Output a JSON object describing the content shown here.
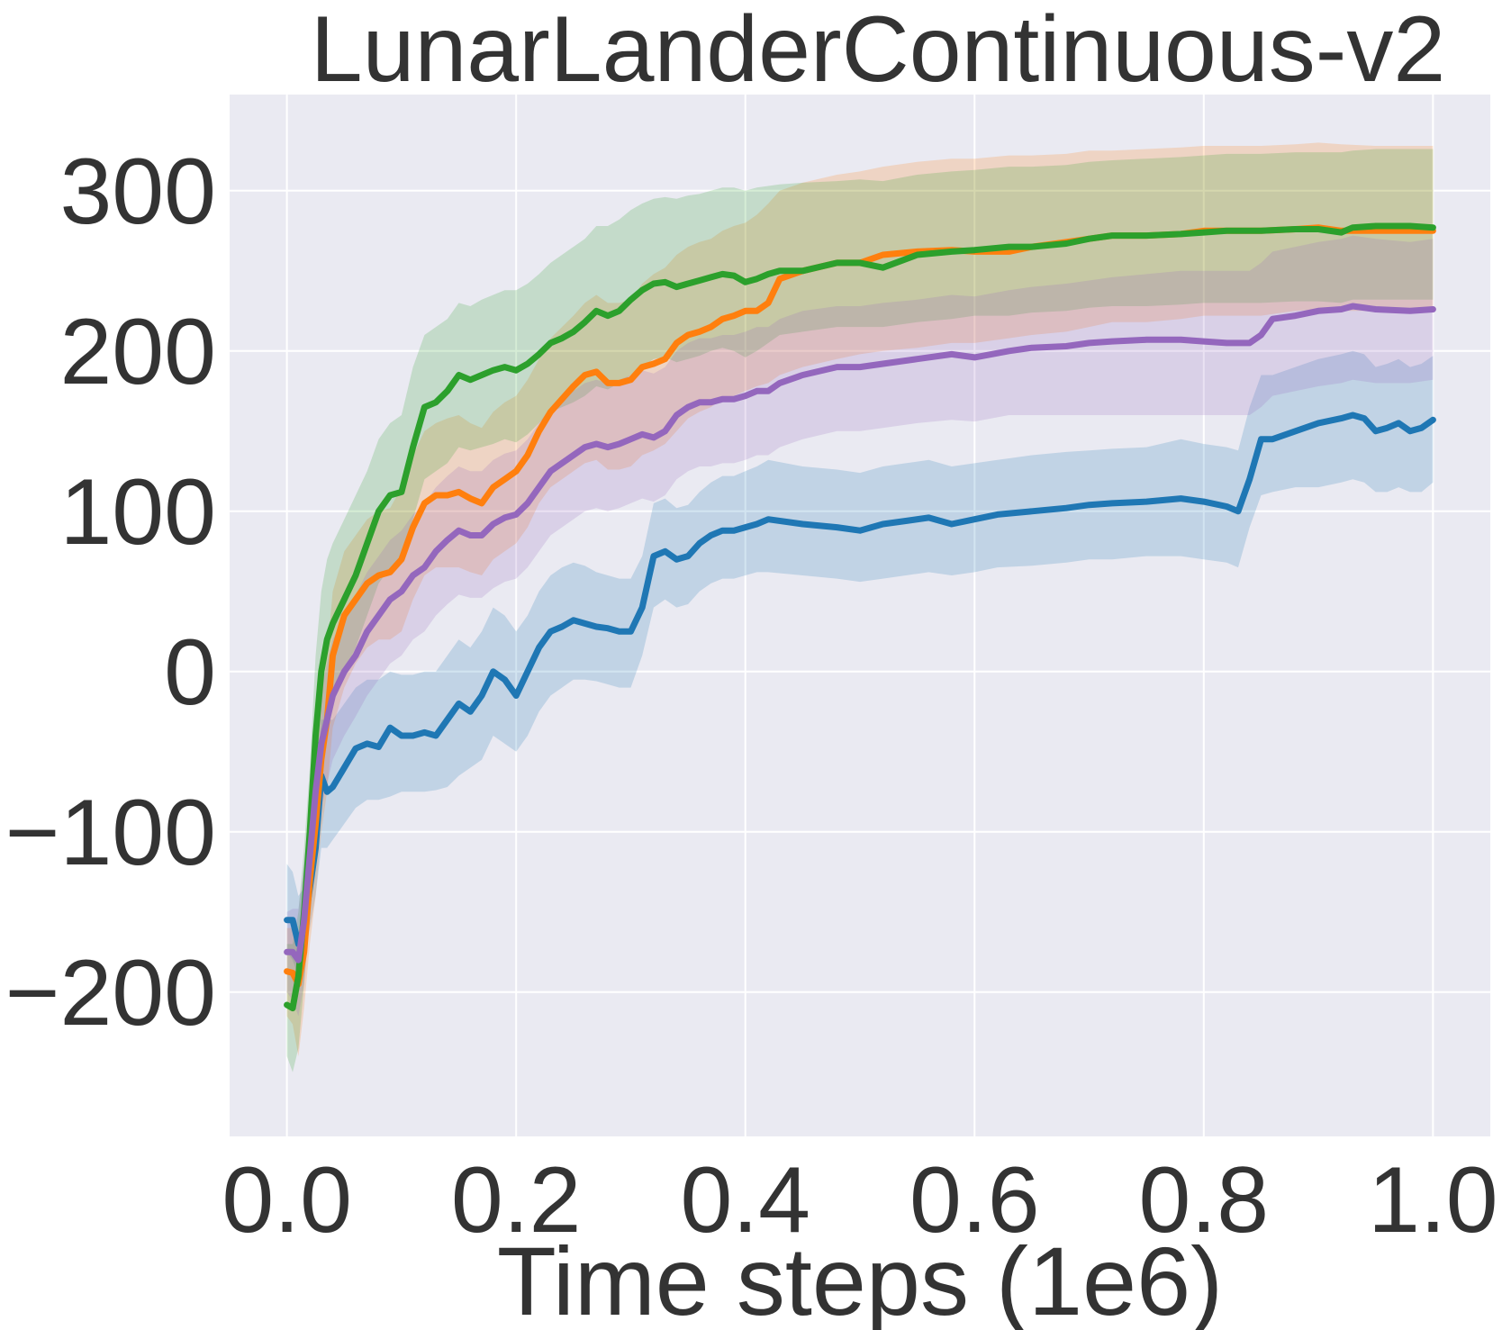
{
  "chart_data": {
    "type": "line",
    "title": "LunarLanderContinuous-v2",
    "xlabel": "Time steps (1e6)",
    "ylabel": "",
    "xlim": [
      -0.05,
      1.05
    ],
    "ylim": [
      -290,
      360
    ],
    "x_ticks": [
      0.0,
      0.2,
      0.4,
      0.6,
      0.8,
      1.0
    ],
    "x_tick_labels": [
      "0.0",
      "0.2",
      "0.4",
      "0.6",
      "0.8",
      "1.0"
    ],
    "y_ticks": [
      -200,
      -100,
      0,
      100,
      200,
      300
    ],
    "y_tick_labels": [
      "−200",
      "−100",
      "0",
      "100",
      "200",
      "300"
    ],
    "grid": true,
    "background": "#eaeaf2",
    "series": [
      {
        "color": "#1f77b4",
        "x": [
          0.0,
          0.005,
          0.01,
          0.015,
          0.02,
          0.025,
          0.03,
          0.035,
          0.04,
          0.05,
          0.06,
          0.07,
          0.08,
          0.09,
          0.1,
          0.11,
          0.12,
          0.13,
          0.14,
          0.15,
          0.16,
          0.17,
          0.18,
          0.19,
          0.2,
          0.21,
          0.22,
          0.23,
          0.24,
          0.25,
          0.26,
          0.27,
          0.28,
          0.29,
          0.3,
          0.31,
          0.32,
          0.33,
          0.34,
          0.35,
          0.36,
          0.37,
          0.38,
          0.39,
          0.4,
          0.41,
          0.42,
          0.45,
          0.48,
          0.5,
          0.52,
          0.54,
          0.56,
          0.58,
          0.6,
          0.62,
          0.65,
          0.68,
          0.7,
          0.72,
          0.75,
          0.78,
          0.8,
          0.82,
          0.83,
          0.84,
          0.85,
          0.86,
          0.88,
          0.9,
          0.92,
          0.93,
          0.94,
          0.95,
          0.96,
          0.97,
          0.98,
          0.99,
          1.0
        ],
        "y": [
          -155,
          -155,
          -170,
          -160,
          -135,
          -110,
          -65,
          -75,
          -72,
          -60,
          -48,
          -45,
          -47,
          -35,
          -40,
          -40,
          -38,
          -40,
          -30,
          -20,
          -25,
          -15,
          0,
          -5,
          -15,
          0,
          15,
          25,
          28,
          32,
          30,
          28,
          27,
          25,
          25,
          40,
          72,
          75,
          70,
          72,
          80,
          85,
          88,
          88,
          90,
          92,
          95,
          92,
          90,
          88,
          92,
          94,
          96,
          92,
          95,
          98,
          100,
          102,
          104,
          105,
          106,
          108,
          106,
          103,
          100,
          120,
          145,
          145,
          150,
          155,
          158,
          160,
          158,
          150,
          152,
          155,
          150,
          152,
          157
        ],
        "lower": [
          -175,
          -180,
          -190,
          -180,
          -160,
          -140,
          -110,
          -110,
          -105,
          -95,
          -85,
          -80,
          -80,
          -78,
          -75,
          -75,
          -75,
          -74,
          -72,
          -65,
          -60,
          -55,
          -40,
          -45,
          -50,
          -40,
          -25,
          -15,
          -10,
          -5,
          -5,
          -6,
          -8,
          -10,
          -10,
          10,
          40,
          45,
          40,
          42,
          50,
          55,
          58,
          58,
          60,
          62,
          62,
          60,
          58,
          56,
          58,
          60,
          62,
          60,
          62,
          65,
          66,
          68,
          70,
          70,
          72,
          72,
          70,
          68,
          65,
          90,
          110,
          112,
          115,
          115,
          118,
          120,
          118,
          112,
          112,
          115,
          112,
          112,
          118
        ],
        "upper": [
          -120,
          -125,
          -140,
          -135,
          -110,
          -80,
          -30,
          -30,
          -30,
          -20,
          -10,
          -5,
          -5,
          0,
          -2,
          -2,
          0,
          0,
          10,
          20,
          15,
          25,
          40,
          35,
          25,
          35,
          50,
          60,
          65,
          68,
          66,
          62,
          60,
          58,
          58,
          72,
          105,
          108,
          102,
          104,
          112,
          118,
          122,
          122,
          125,
          128,
          132,
          128,
          126,
          124,
          128,
          130,
          132,
          128,
          130,
          132,
          135,
          137,
          138,
          139,
          140,
          145,
          142,
          140,
          138,
          165,
          185,
          185,
          190,
          195,
          198,
          200,
          198,
          190,
          192,
          195,
          190,
          192,
          197
        ]
      },
      {
        "color": "#ff7f0e",
        "x": [
          0.0,
          0.005,
          0.01,
          0.015,
          0.02,
          0.025,
          0.03,
          0.035,
          0.04,
          0.05,
          0.06,
          0.07,
          0.08,
          0.09,
          0.1,
          0.11,
          0.12,
          0.13,
          0.14,
          0.15,
          0.16,
          0.17,
          0.18,
          0.19,
          0.2,
          0.21,
          0.22,
          0.23,
          0.24,
          0.25,
          0.26,
          0.27,
          0.28,
          0.29,
          0.3,
          0.31,
          0.32,
          0.33,
          0.34,
          0.35,
          0.36,
          0.37,
          0.38,
          0.39,
          0.4,
          0.41,
          0.42,
          0.43,
          0.45,
          0.48,
          0.5,
          0.52,
          0.55,
          0.58,
          0.6,
          0.63,
          0.65,
          0.68,
          0.7,
          0.72,
          0.75,
          0.78,
          0.8,
          0.82,
          0.85,
          0.88,
          0.9,
          0.92,
          0.95,
          0.98,
          1.0
        ],
        "y": [
          -187,
          -188,
          -195,
          -175,
          -130,
          -95,
          -55,
          -30,
          10,
          35,
          45,
          55,
          60,
          62,
          70,
          90,
          105,
          110,
          110,
          112,
          108,
          105,
          115,
          120,
          125,
          135,
          150,
          162,
          170,
          178,
          185,
          187,
          180,
          180,
          182,
          190,
          192,
          195,
          205,
          210,
          212,
          215,
          220,
          222,
          225,
          225,
          230,
          245,
          250,
          255,
          255,
          260,
          262,
          263,
          262,
          262,
          265,
          268,
          270,
          272,
          272,
          273,
          275,
          275,
          275,
          276,
          277,
          275,
          275,
          275,
          275
        ],
        "lower": [
          -215,
          -220,
          -240,
          -210,
          -170,
          -140,
          -100,
          -75,
          -35,
          -10,
          5,
          15,
          20,
          20,
          25,
          45,
          60,
          65,
          65,
          65,
          62,
          60,
          70,
          75,
          80,
          90,
          105,
          115,
          120,
          125,
          130,
          132,
          126,
          126,
          128,
          135,
          138,
          142,
          150,
          158,
          162,
          165,
          170,
          172,
          175,
          178,
          180,
          185,
          190,
          195,
          198,
          200,
          202,
          205,
          205,
          208,
          210,
          212,
          215,
          218,
          218,
          220,
          222,
          222,
          222,
          225,
          226,
          225,
          225,
          225,
          225
        ],
        "upper": [
          -160,
          -160,
          -165,
          -140,
          -95,
          -55,
          -15,
          10,
          50,
          75,
          85,
          95,
          100,
          102,
          115,
          135,
          150,
          155,
          158,
          160,
          155,
          152,
          162,
          168,
          172,
          182,
          195,
          208,
          215,
          222,
          230,
          235,
          230,
          230,
          232,
          242,
          248,
          252,
          260,
          265,
          268,
          270,
          275,
          278,
          280,
          285,
          292,
          300,
          305,
          310,
          312,
          315,
          318,
          320,
          320,
          322,
          322,
          323,
          325,
          325,
          326,
          327,
          328,
          328,
          328,
          329,
          330,
          329,
          328,
          328,
          328
        ]
      },
      {
        "color": "#2ca02c",
        "x": [
          0.0,
          0.005,
          0.01,
          0.015,
          0.02,
          0.025,
          0.03,
          0.035,
          0.04,
          0.05,
          0.06,
          0.07,
          0.08,
          0.09,
          0.1,
          0.11,
          0.12,
          0.13,
          0.14,
          0.15,
          0.16,
          0.17,
          0.18,
          0.19,
          0.2,
          0.21,
          0.22,
          0.23,
          0.24,
          0.25,
          0.26,
          0.27,
          0.28,
          0.29,
          0.3,
          0.31,
          0.32,
          0.33,
          0.34,
          0.35,
          0.36,
          0.37,
          0.38,
          0.39,
          0.4,
          0.41,
          0.42,
          0.43,
          0.45,
          0.48,
          0.5,
          0.52,
          0.55,
          0.58,
          0.6,
          0.63,
          0.65,
          0.68,
          0.7,
          0.72,
          0.75,
          0.78,
          0.8,
          0.82,
          0.85,
          0.88,
          0.9,
          0.92,
          0.93,
          0.95,
          0.98,
          1.0
        ],
        "y": [
          -208,
          -210,
          -190,
          -150,
          -100,
          -40,
          0,
          20,
          30,
          45,
          60,
          80,
          100,
          110,
          112,
          140,
          165,
          168,
          175,
          185,
          182,
          185,
          188,
          190,
          188,
          192,
          198,
          205,
          208,
          212,
          218,
          225,
          222,
          225,
          232,
          238,
          242,
          243,
          240,
          242,
          244,
          246,
          248,
          247,
          243,
          245,
          248,
          250,
          250,
          255,
          255,
          252,
          260,
          262,
          263,
          265,
          265,
          267,
          270,
          272,
          272,
          273,
          274,
          275,
          275,
          276,
          276,
          274,
          277,
          278,
          278,
          277
        ],
        "lower": [
          -240,
          -250,
          -235,
          -195,
          -150,
          -100,
          -55,
          -30,
          -15,
          0,
          15,
          35,
          55,
          65,
          70,
          95,
          120,
          125,
          130,
          140,
          138,
          140,
          142,
          145,
          143,
          148,
          155,
          162,
          165,
          168,
          172,
          178,
          176,
          180,
          185,
          190,
          195,
          196,
          193,
          195,
          197,
          200,
          202,
          200,
          196,
          200,
          205,
          210,
          212,
          215,
          215,
          215,
          218,
          220,
          222,
          222,
          224,
          225,
          227,
          228,
          228,
          229,
          230,
          230,
          230,
          231,
          231,
          230,
          232,
          232,
          232,
          232
        ],
        "upper": [
          -170,
          -170,
          -150,
          -110,
          -60,
          10,
          50,
          70,
          80,
          95,
          110,
          125,
          145,
          155,
          160,
          190,
          210,
          215,
          220,
          230,
          228,
          232,
          235,
          238,
          238,
          242,
          248,
          255,
          260,
          265,
          270,
          278,
          278,
          282,
          288,
          292,
          295,
          296,
          295,
          297,
          298,
          300,
          302,
          302,
          300,
          302,
          303,
          304,
          305,
          306,
          307,
          306,
          310,
          312,
          313,
          315,
          315,
          316,
          318,
          319,
          320,
          321,
          322,
          323,
          323,
          324,
          324,
          324,
          325,
          326,
          326,
          326
        ]
      },
      {
        "color": "#9467bd",
        "x": [
          0.0,
          0.005,
          0.01,
          0.015,
          0.02,
          0.025,
          0.03,
          0.035,
          0.04,
          0.05,
          0.06,
          0.07,
          0.08,
          0.09,
          0.1,
          0.11,
          0.12,
          0.13,
          0.14,
          0.15,
          0.16,
          0.17,
          0.18,
          0.19,
          0.2,
          0.21,
          0.22,
          0.23,
          0.24,
          0.25,
          0.26,
          0.27,
          0.28,
          0.29,
          0.3,
          0.31,
          0.32,
          0.33,
          0.34,
          0.35,
          0.36,
          0.37,
          0.38,
          0.39,
          0.4,
          0.41,
          0.42,
          0.43,
          0.45,
          0.48,
          0.5,
          0.52,
          0.55,
          0.58,
          0.6,
          0.63,
          0.65,
          0.68,
          0.7,
          0.72,
          0.75,
          0.78,
          0.8,
          0.82,
          0.84,
          0.85,
          0.86,
          0.88,
          0.9,
          0.92,
          0.93,
          0.95,
          0.98,
          1.0
        ],
        "y": [
          -175,
          -175,
          -180,
          -155,
          -115,
          -75,
          -45,
          -30,
          -15,
          0,
          10,
          25,
          35,
          45,
          50,
          60,
          65,
          75,
          82,
          88,
          85,
          85,
          92,
          96,
          98,
          105,
          115,
          125,
          130,
          135,
          140,
          142,
          140,
          142,
          145,
          148,
          146,
          150,
          160,
          165,
          168,
          168,
          170,
          170,
          172,
          175,
          175,
          180,
          185,
          190,
          190,
          192,
          195,
          198,
          196,
          200,
          202,
          203,
          205,
          206,
          207,
          207,
          206,
          205,
          205,
          210,
          220,
          222,
          225,
          226,
          228,
          226,
          225,
          226
        ],
        "lower": [
          -200,
          -205,
          -215,
          -195,
          -155,
          -115,
          -85,
          -70,
          -55,
          -40,
          -28,
          -15,
          -5,
          5,
          10,
          20,
          25,
          35,
          42,
          48,
          46,
          46,
          52,
          56,
          58,
          65,
          75,
          85,
          90,
          95,
          100,
          102,
          100,
          102,
          105,
          108,
          106,
          110,
          120,
          125,
          128,
          128,
          130,
          130,
          132,
          135,
          135,
          140,
          145,
          150,
          150,
          152,
          155,
          157,
          156,
          160,
          160,
          160,
          160,
          160,
          160,
          160,
          160,
          160,
          160,
          165,
          172,
          175,
          178,
          180,
          182,
          180,
          180,
          182
        ],
        "upper": [
          -150,
          -148,
          -148,
          -120,
          -80,
          -40,
          -10,
          5,
          20,
          35,
          48,
          62,
          72,
          82,
          88,
          98,
          105,
          115,
          122,
          128,
          125,
          125,
          132,
          136,
          138,
          145,
          155,
          165,
          170,
          175,
          180,
          182,
          180,
          182,
          185,
          188,
          186,
          190,
          200,
          205,
          208,
          208,
          210,
          210,
          212,
          215,
          215,
          220,
          225,
          228,
          228,
          230,
          232,
          235,
          234,
          238,
          240,
          242,
          244,
          246,
          248,
          250,
          250,
          250,
          250,
          255,
          262,
          265,
          268,
          270,
          272,
          270,
          268,
          270
        ]
      }
    ]
  }
}
